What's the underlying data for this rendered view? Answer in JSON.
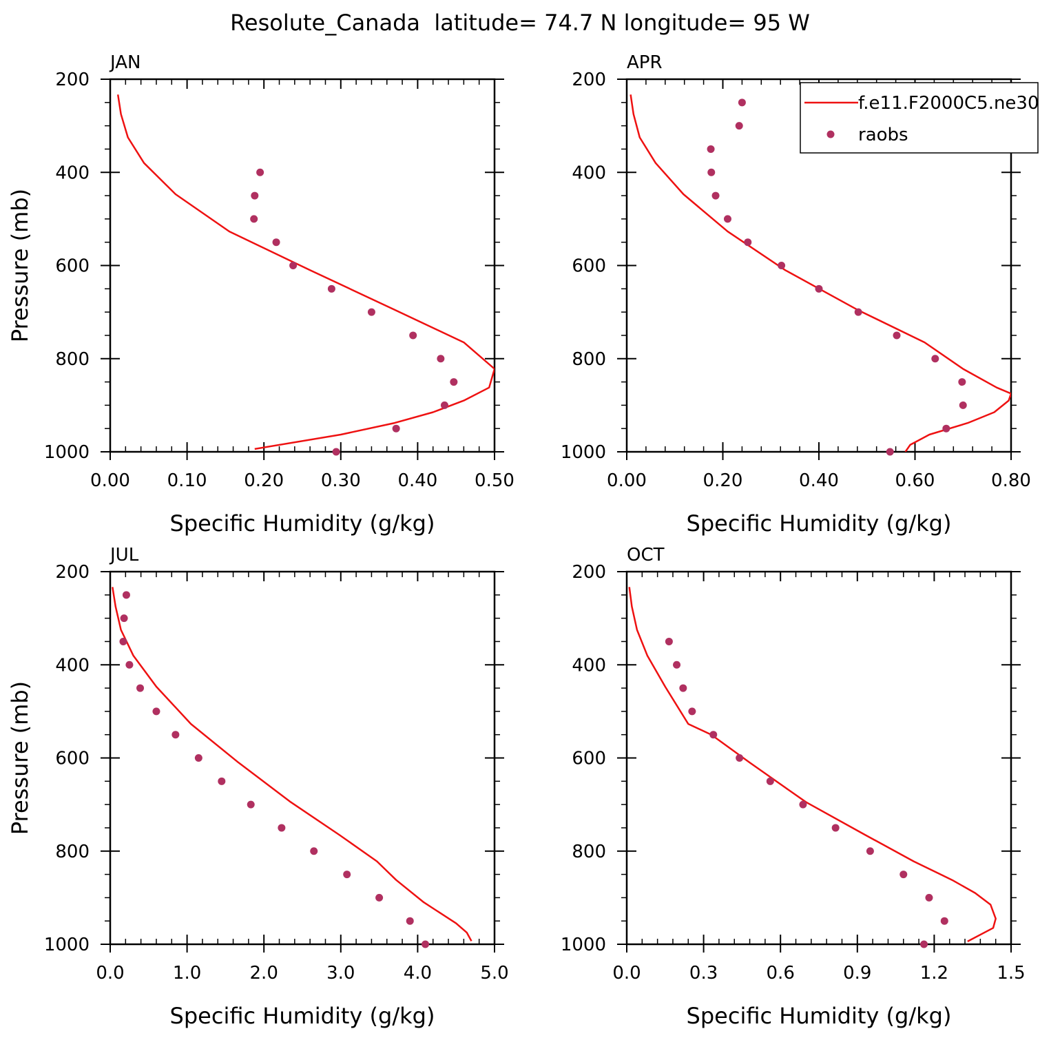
{
  "figure": {
    "title": "Resolute_Canada  latitude= 74.7 N longitude= 95 W"
  },
  "colors": {
    "model": "#ee1111",
    "obs": "#b03060",
    "axis": "#000000"
  },
  "legend": {
    "model_label": "f.e11.F2000C5.ne30",
    "obs_label": "raobs"
  },
  "chart_data": [
    {
      "type": "line",
      "panel": "JAN",
      "xlabel": "Specific Humidity (g/kg)",
      "ylabel": "Pressure (mb)",
      "xlim": [
        0,
        0.5
      ],
      "ylim": [
        200,
        1000
      ],
      "y_inverted": true,
      "xticks": [
        0,
        0.1,
        0.2,
        0.3,
        0.4,
        0.5
      ],
      "xtick_labels": [
        "0.00",
        "0.10",
        "0.20",
        "0.30",
        "0.40",
        "0.50"
      ],
      "yticks": [
        200,
        400,
        600,
        800,
        1000
      ],
      "ytick_labels": [
        "200",
        "400",
        "600",
        "800",
        "1000"
      ],
      "series": [
        {
          "name": "f.e11.F2000C5.ne30",
          "kind": "line",
          "x": [
            0.01,
            0.014,
            0.023,
            0.044,
            0.085,
            0.155,
            0.26,
            0.37,
            0.46,
            0.5,
            0.493,
            0.46,
            0.42,
            0.37,
            0.3,
            0.188
          ],
          "y": [
            233,
            275,
            325,
            380,
            447,
            527,
            610,
            695,
            765,
            822,
            862,
            890,
            915,
            938,
            963,
            994
          ]
        },
        {
          "name": "raobs",
          "kind": "scatter",
          "x": [
            0.195,
            0.188,
            0.187,
            0.216,
            0.238,
            0.288,
            0.34,
            0.394,
            0.43,
            0.447,
            0.435,
            0.372,
            0.294
          ],
          "y": [
            400,
            450,
            500,
            550,
            600,
            650,
            700,
            750,
            800,
            850,
            900,
            950,
            1000
          ]
        }
      ]
    },
    {
      "type": "line",
      "panel": "APR",
      "xlabel": "Specific Humidity (g/kg)",
      "ylabel": "",
      "xlim": [
        0,
        0.8
      ],
      "ylim": [
        200,
        1000
      ],
      "y_inverted": true,
      "xticks": [
        0,
        0.2,
        0.4,
        0.6,
        0.8
      ],
      "xtick_labels": [
        "0.00",
        "0.20",
        "0.40",
        "0.60",
        "0.80"
      ],
      "yticks": [
        200,
        400,
        600,
        800,
        1000
      ],
      "ytick_labels": [
        "200",
        "400",
        "600",
        "800",
        "1000"
      ],
      "series": [
        {
          "name": "f.e11.F2000C5.ne30",
          "kind": "line",
          "x": [
            0.008,
            0.014,
            0.027,
            0.06,
            0.118,
            0.21,
            0.33,
            0.48,
            0.62,
            0.7,
            0.77,
            0.8,
            0.795,
            0.765,
            0.71,
            0.63,
            0.59,
            0.58
          ],
          "y": [
            233,
            275,
            325,
            380,
            447,
            527,
            610,
            695,
            765,
            822,
            862,
            875,
            890,
            915,
            938,
            963,
            985,
            1000
          ]
        },
        {
          "name": "raobs",
          "kind": "scatter",
          "x": [
            0.24,
            0.234,
            0.175,
            0.176,
            0.185,
            0.21,
            0.252,
            0.322,
            0.4,
            0.482,
            0.562,
            0.642,
            0.698,
            0.7,
            0.665,
            0.548
          ],
          "y": [
            250,
            300,
            350,
            400,
            450,
            500,
            550,
            600,
            650,
            700,
            750,
            800,
            850,
            900,
            950,
            1000
          ]
        }
      ]
    },
    {
      "type": "line",
      "panel": "JUL",
      "xlabel": "Specific Humidity (g/kg)",
      "ylabel": "Pressure (mb)",
      "xlim": [
        0,
        5
      ],
      "ylim": [
        200,
        1000
      ],
      "y_inverted": true,
      "xticks": [
        0,
        1,
        2,
        3,
        4,
        5
      ],
      "xtick_labels": [
        "0.0",
        "1.0",
        "2.0",
        "3.0",
        "4.0",
        "5.0"
      ],
      "yticks": [
        200,
        400,
        600,
        800,
        1000
      ],
      "ytick_labels": [
        "200",
        "400",
        "600",
        "800",
        "1000"
      ],
      "series": [
        {
          "name": "f.e11.F2000C5.ne30",
          "kind": "line",
          "x": [
            0.03,
            0.07,
            0.14,
            0.3,
            0.6,
            1.05,
            1.67,
            2.35,
            2.98,
            3.47,
            3.72,
            4.08,
            4.5,
            4.64,
            4.7
          ],
          "y": [
            233,
            275,
            325,
            380,
            447,
            527,
            610,
            695,
            765,
            822,
            862,
            910,
            955,
            975,
            993
          ]
        },
        {
          "name": "raobs",
          "kind": "scatter",
          "x": [
            0.21,
            0.18,
            0.17,
            0.25,
            0.39,
            0.6,
            0.85,
            1.15,
            1.45,
            1.83,
            2.23,
            2.65,
            3.08,
            3.5,
            3.9,
            4.1
          ],
          "y": [
            250,
            300,
            350,
            400,
            450,
            500,
            550,
            600,
            650,
            700,
            750,
            800,
            850,
            900,
            950,
            1000
          ]
        }
      ]
    },
    {
      "type": "line",
      "panel": "OCT",
      "xlabel": "Specific Humidity (g/kg)",
      "ylabel": "",
      "xlim": [
        0,
        1.5
      ],
      "ylim": [
        200,
        1000
      ],
      "y_inverted": true,
      "xticks": [
        0,
        0.3,
        0.6,
        0.9,
        1.2,
        1.5
      ],
      "xtick_labels": [
        "0.0",
        "0.3",
        "0.6",
        "0.9",
        "1.2",
        "1.5"
      ],
      "yticks": [
        200,
        400,
        600,
        800,
        1000
      ],
      "ytick_labels": [
        "200",
        "400",
        "600",
        "800",
        "1000"
      ],
      "series": [
        {
          "name": "f.e11.F2000C5.ne30",
          "kind": "line",
          "x": [
            0.01,
            0.02,
            0.04,
            0.08,
            0.15,
            0.24,
            0.33,
            0.48,
            0.7,
            0.93,
            1.12,
            1.27,
            1.36,
            1.42,
            1.44,
            1.43,
            1.33
          ],
          "y": [
            233,
            275,
            325,
            380,
            447,
            527,
            550,
            610,
            695,
            765,
            822,
            862,
            890,
            915,
            945,
            965,
            994
          ]
        },
        {
          "name": "raobs",
          "kind": "scatter",
          "x": [
            0.165,
            0.195,
            0.22,
            0.255,
            0.338,
            0.44,
            0.56,
            0.688,
            0.815,
            0.95,
            1.08,
            1.18,
            1.24,
            1.16
          ],
          "y": [
            350,
            400,
            450,
            500,
            550,
            600,
            650,
            700,
            750,
            800,
            850,
            900,
            950,
            1000
          ]
        }
      ]
    }
  ]
}
